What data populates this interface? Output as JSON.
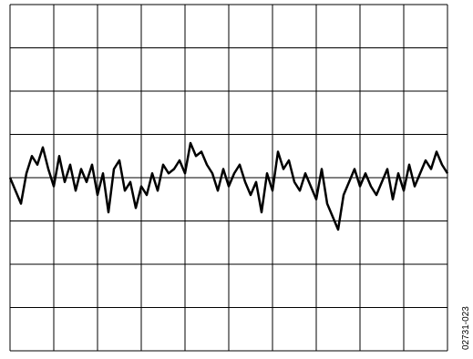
{
  "chart_data": {
    "type": "line",
    "annotation": "02731-023",
    "xlim": [
      0,
      10
    ],
    "ylim": [
      -4,
      4
    ],
    "xticks": [
      0,
      1,
      2,
      3,
      4,
      5,
      6,
      7,
      8,
      9,
      10
    ],
    "yticks": [
      -4,
      -3,
      -2,
      -1,
      0,
      1,
      2,
      3,
      4
    ],
    "grid": true,
    "x": [
      0,
      0.125,
      0.25,
      0.375,
      0.5,
      0.625,
      0.75,
      0.875,
      1,
      1.125,
      1.25,
      1.375,
      1.5,
      1.625,
      1.75,
      1.875,
      2,
      2.125,
      2.25,
      2.375,
      2.5,
      2.625,
      2.75,
      2.875,
      3,
      3.125,
      3.25,
      3.375,
      3.5,
      3.625,
      3.75,
      3.875,
      4,
      4.125,
      4.25,
      4.375,
      4.5,
      4.625,
      4.75,
      4.875,
      5,
      5.125,
      5.25,
      5.375,
      5.5,
      5.625,
      5.75,
      5.875,
      6,
      6.125,
      6.25,
      6.375,
      6.5,
      6.625,
      6.75,
      6.875,
      7,
      7.125,
      7.25,
      7.375,
      7.5,
      7.625,
      7.75,
      7.875,
      8,
      8.125,
      8.25,
      8.375,
      8.5,
      8.625,
      8.75,
      8.875,
      9,
      9.125,
      9.25,
      9.375,
      9.5,
      9.625,
      9.75,
      9.875,
      10
    ],
    "series": [
      {
        "color": "#000000",
        "values": [
          0,
          -0.3,
          -0.6,
          0.1,
          0.5,
          0.3,
          0.7,
          0.2,
          -0.2,
          0.5,
          -0.1,
          0.3,
          -0.3,
          0.2,
          -0.1,
          0.3,
          -0.4,
          0.1,
          -0.8,
          0.2,
          0.4,
          -0.3,
          -0.1,
          -0.7,
          -0.2,
          -0.4,
          0.1,
          -0.3,
          0.3,
          0.1,
          0.2,
          0.4,
          0.1,
          0.8,
          0.5,
          0.6,
          0.3,
          0.1,
          -0.3,
          0.2,
          -0.2,
          0.1,
          0.3,
          -0.1,
          -0.4,
          -0.1,
          -0.8,
          0.1,
          -0.3,
          0.6,
          0.2,
          0.4,
          -0.1,
          -0.3,
          0.1,
          -0.2,
          -0.5,
          0.2,
          -0.6,
          -0.9,
          -1.2,
          -0.4,
          -0.1,
          0.2,
          -0.2,
          0.1,
          -0.2,
          -0.4,
          -0.1,
          0.2,
          -0.5,
          0.1,
          -0.3,
          0.3,
          -0.2,
          0.1,
          0.4,
          0.2,
          0.6,
          0.3,
          0.1
        ]
      }
    ]
  }
}
